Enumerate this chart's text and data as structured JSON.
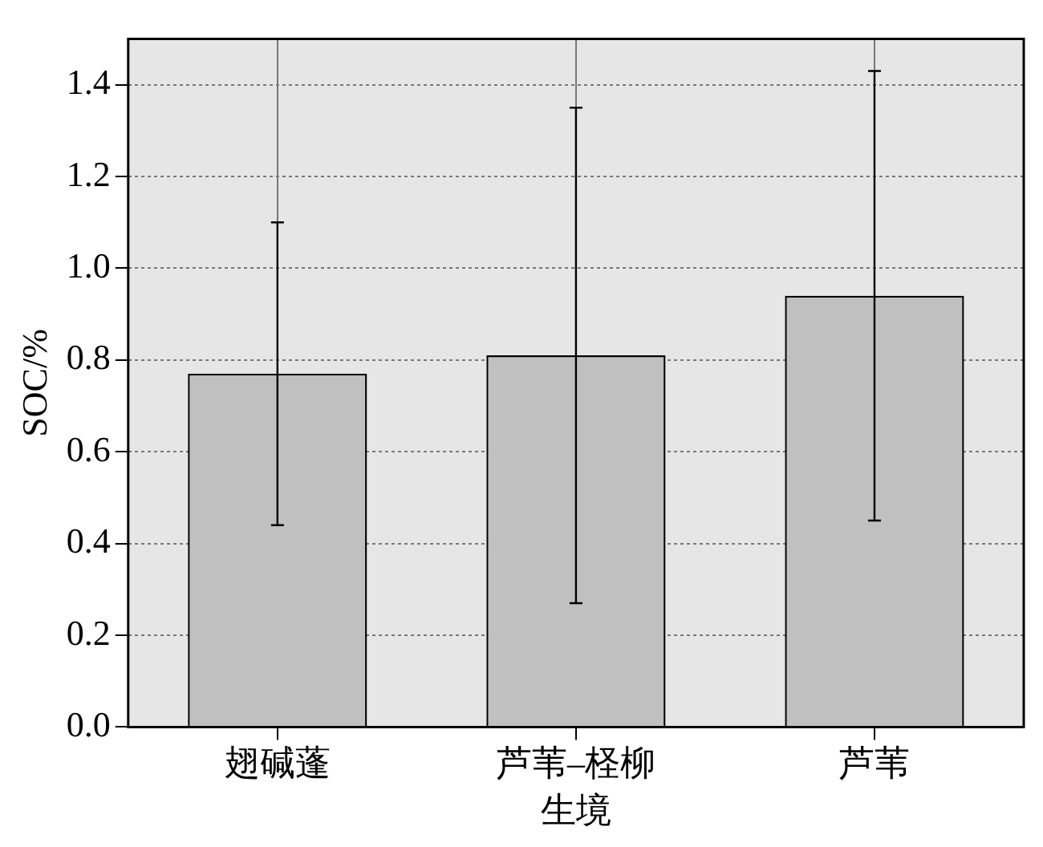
{
  "chart_data": {
    "type": "bar",
    "xlabel": "生境",
    "ylabel": "SOC/%",
    "categories": [
      "翅碱蓬",
      "芦苇–柽柳",
      "芦苇"
    ],
    "values": [
      0.77,
      0.81,
      0.94
    ],
    "color": "#c0c0c0",
    "errors": [
      [
        0.44,
        1.1
      ],
      [
        0.27,
        1.35
      ],
      [
        0.45,
        1.43
      ]
    ],
    "ylim": [
      0,
      1.5
    ],
    "yticks": [
      {
        "value": 0,
        "label": "0.0"
      },
      {
        "value": 0.2,
        "label": "0.2"
      },
      {
        "value": 0.4,
        "label": "0.4"
      },
      {
        "value": 0.6,
        "label": "0.6"
      },
      {
        "value": 0.8,
        "label": "0.8"
      },
      {
        "value": 1,
        "label": "1.0"
      },
      {
        "value": 1.2,
        "label": "1.2"
      },
      {
        "value": 1.4,
        "label": "1.4"
      }
    ],
    "grid": true
  }
}
